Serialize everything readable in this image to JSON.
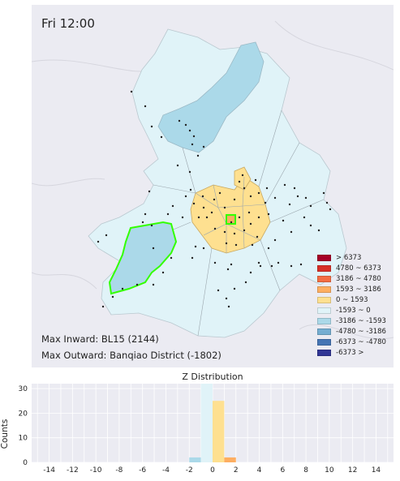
{
  "map": {
    "title": "Fri 12:00",
    "max_inward": "Max Inward: BL15 (2144)",
    "max_outward": "Max Outward: Banqiao District (-1802)",
    "legend": [
      {
        "label": "> 6373",
        "color": "#a50026"
      },
      {
        "label": "4780 ~ 6373",
        "color": "#d73027"
      },
      {
        "label": "3186 ~ 4780",
        "color": "#f46d43"
      },
      {
        "label": "1593 ~ 3186",
        "color": "#fdae61"
      },
      {
        "label": "0 ~ 1593",
        "color": "#fee090"
      },
      {
        "label": "-1593 ~ 0",
        "color": "#e0f3f8"
      },
      {
        "label": "-3186 ~ -1593",
        "color": "#abd9e9"
      },
      {
        "label": "-4780 ~ -3186",
        "color": "#74add1"
      },
      {
        "label": "-6373 ~ -4780",
        "color": "#4575b4"
      },
      {
        "label": "-6373 >",
        "color": "#313695"
      }
    ],
    "highlight_inward_color": "#33ff00",
    "highlight_outward_color": "#33ff00"
  },
  "chart_data": {
    "type": "bar",
    "title": "Z Distribution",
    "xlabel": "",
    "ylabel": "Counts",
    "xlim": [
      -15.5,
      15.5
    ],
    "ylim": [
      0,
      32
    ],
    "xticks": [
      -14,
      -12,
      -10,
      -8,
      -6,
      -4,
      -2,
      0,
      2,
      4,
      6,
      8,
      10,
      12,
      14
    ],
    "yticks": [
      0,
      10,
      20,
      30
    ],
    "bar_width": 1,
    "bars": [
      {
        "x": -1.5,
        "value": 2,
        "color": "#abd9e9"
      },
      {
        "x": -0.5,
        "value": 33,
        "color": "#e0f3f8"
      },
      {
        "x": 0.5,
        "value": 25,
        "color": "#fee090"
      },
      {
        "x": 1.5,
        "value": 2,
        "color": "#fdae61"
      }
    ],
    "grid": true
  }
}
